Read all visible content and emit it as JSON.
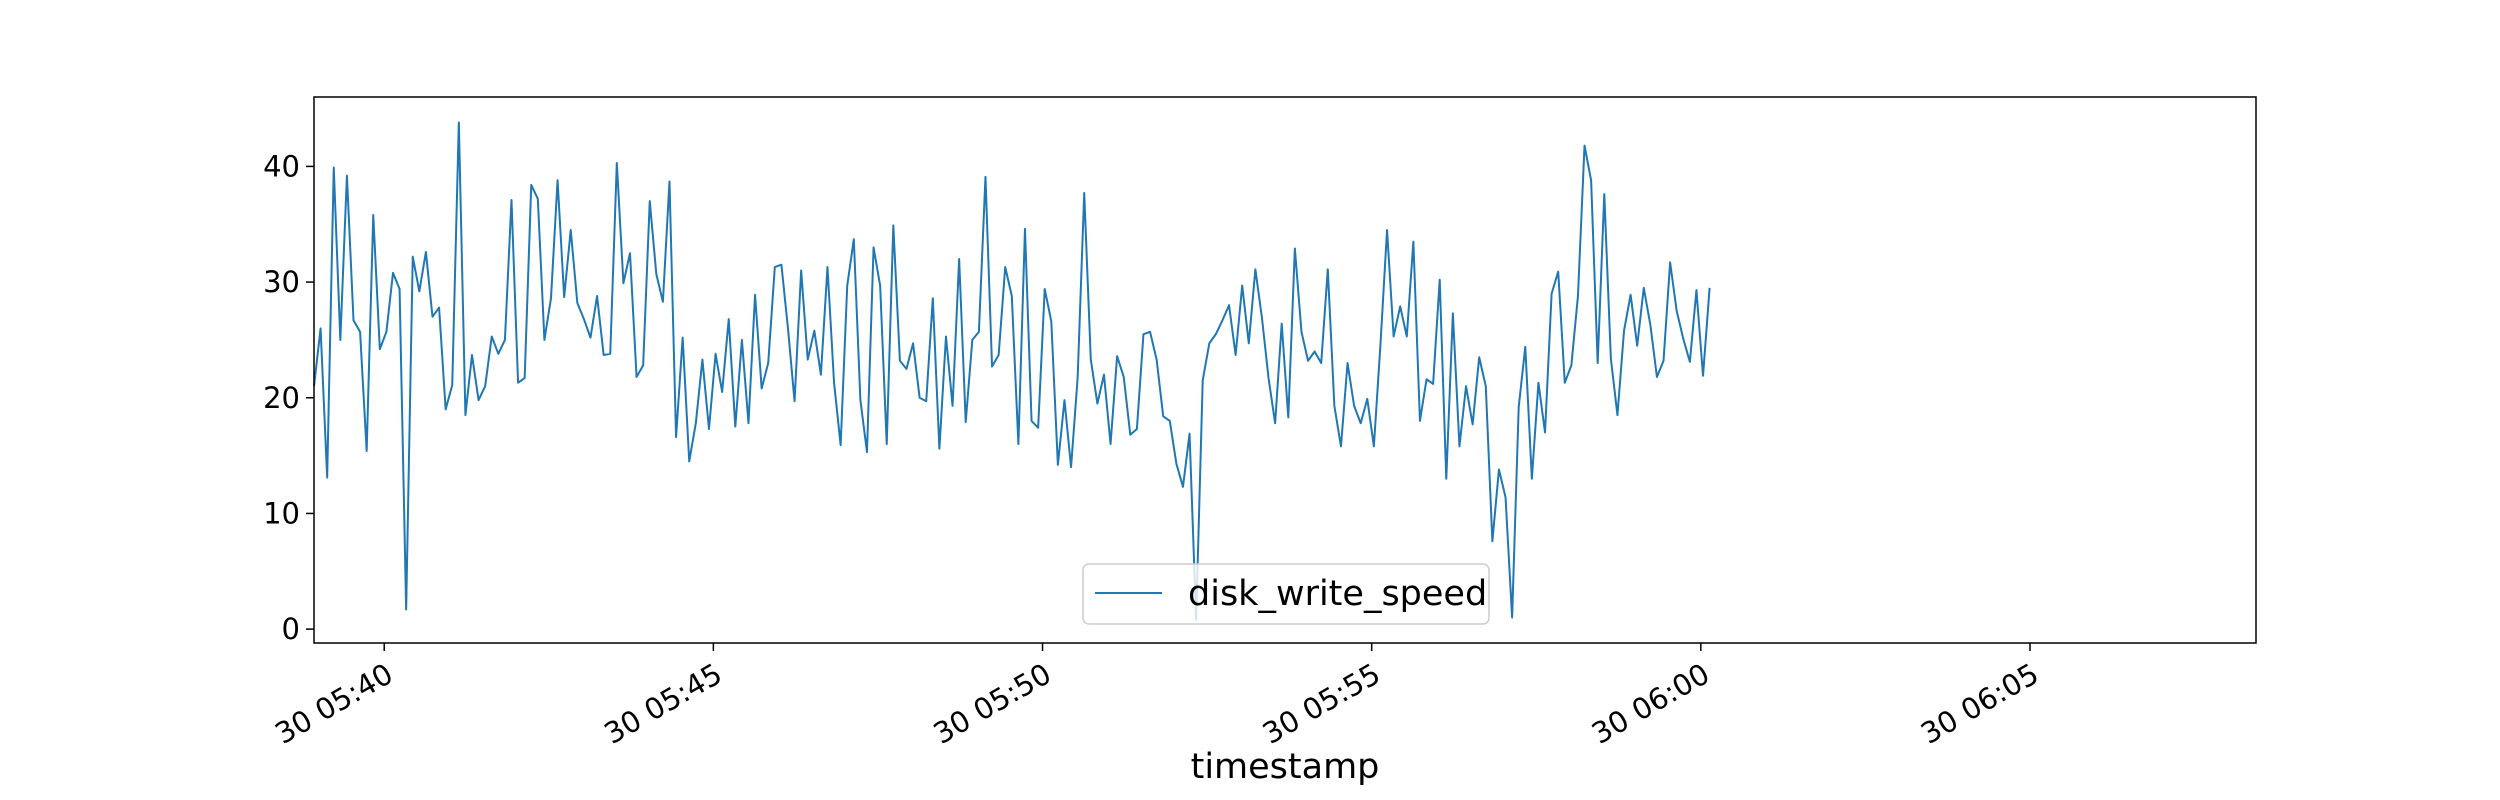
{
  "chart_data": {
    "type": "line",
    "title": "",
    "xlabel": "timestamp",
    "ylabel": "",
    "x_start": "30 05:38:56",
    "x_step_seconds": 6,
    "xlim": [
      "30 05:38:56",
      "30 06:08:26"
    ],
    "ylim": [
      -1.2,
      46
    ],
    "y_ticks": [
      0,
      10,
      20,
      30,
      40
    ],
    "x_ticks": [
      {
        "label": "30 05:40",
        "time": "05:40:00"
      },
      {
        "label": "30 05:45",
        "time": "05:45:00"
      },
      {
        "label": "30 05:50",
        "time": "05:50:00"
      },
      {
        "label": "30 05:55",
        "time": "05:55:00"
      },
      {
        "label": "30 06:00",
        "time": "06:00:00"
      },
      {
        "label": "30 06:05",
        "time": "06:05:00"
      }
    ],
    "grid": false,
    "legend_position": "lower center",
    "series": [
      {
        "name": "disk_write_speed",
        "color": "#1f77b4",
        "values": [
          21.0,
          26.0,
          13.1,
          39.9,
          25.0,
          39.2,
          26.7,
          25.7,
          15.4,
          35.8,
          24.2,
          25.7,
          30.8,
          29.4,
          1.7,
          32.2,
          29.2,
          32.6,
          27.0,
          27.8,
          19.0,
          21.1,
          43.8,
          18.5,
          23.7,
          19.8,
          21.0,
          25.3,
          23.8,
          25.0,
          37.1,
          21.3,
          21.7,
          38.4,
          37.2,
          25.0,
          28.6,
          38.8,
          28.7,
          34.5,
          28.2,
          26.8,
          25.2,
          28.8,
          23.7,
          23.8,
          40.3,
          29.9,
          32.5,
          21.8,
          22.8,
          37.0,
          30.7,
          28.3,
          38.7,
          16.6,
          25.2,
          14.5,
          17.8,
          23.3,
          17.3,
          23.8,
          20.5,
          26.8,
          17.5,
          25.0,
          17.8,
          28.9,
          20.8,
          23.0,
          31.3,
          31.5,
          26.0,
          19.7,
          31.0,
          23.3,
          25.8,
          22.0,
          31.3,
          21.3,
          15.9,
          29.7,
          33.7,
          19.8,
          15.3,
          33.0,
          29.7,
          16.0,
          34.9,
          23.2,
          22.5,
          24.7,
          20.0,
          19.7,
          28.6,
          15.6,
          25.3,
          19.3,
          32.0,
          17.9,
          25.0,
          25.7,
          39.1,
          22.7,
          23.7,
          31.3,
          28.8,
          16.0,
          34.6,
          18.0,
          17.4,
          29.4,
          26.6,
          14.2,
          19.8,
          14.0,
          21.7,
          37.7,
          23.3,
          19.5,
          22.0,
          16.0,
          23.6,
          21.8,
          16.8,
          17.3,
          25.5,
          25.7,
          23.3,
          18.4,
          18.0,
          14.3,
          12.3,
          16.9,
          0.8,
          21.5,
          24.7,
          25.5,
          26.7,
          28.0,
          23.7,
          29.7,
          24.7,
          31.1,
          26.9,
          21.7,
          17.8,
          26.4,
          18.3,
          32.9,
          25.7,
          23.2,
          24.0,
          23.0,
          31.1,
          19.3,
          15.8,
          23.0,
          19.3,
          17.8,
          19.9,
          15.8,
          24.6,
          34.5,
          25.3,
          27.9,
          25.3,
          33.5,
          18.0,
          21.6,
          21.2,
          30.2,
          13.0,
          27.3,
          15.8,
          21.0,
          17.7,
          23.5,
          21.0,
          7.6,
          13.8,
          11.4,
          1.0,
          19.2,
          24.4,
          13.0,
          21.3,
          17.0,
          29.0,
          30.9,
          21.3,
          22.8,
          28.8,
          41.8,
          38.8,
          23.0,
          37.6,
          23.4,
          18.5,
          25.8,
          28.9,
          24.5,
          29.5,
          26.3,
          21.8,
          23.2,
          31.7,
          27.5,
          25.1,
          23.1,
          29.3,
          21.9,
          29.5
        ]
      }
    ]
  }
}
